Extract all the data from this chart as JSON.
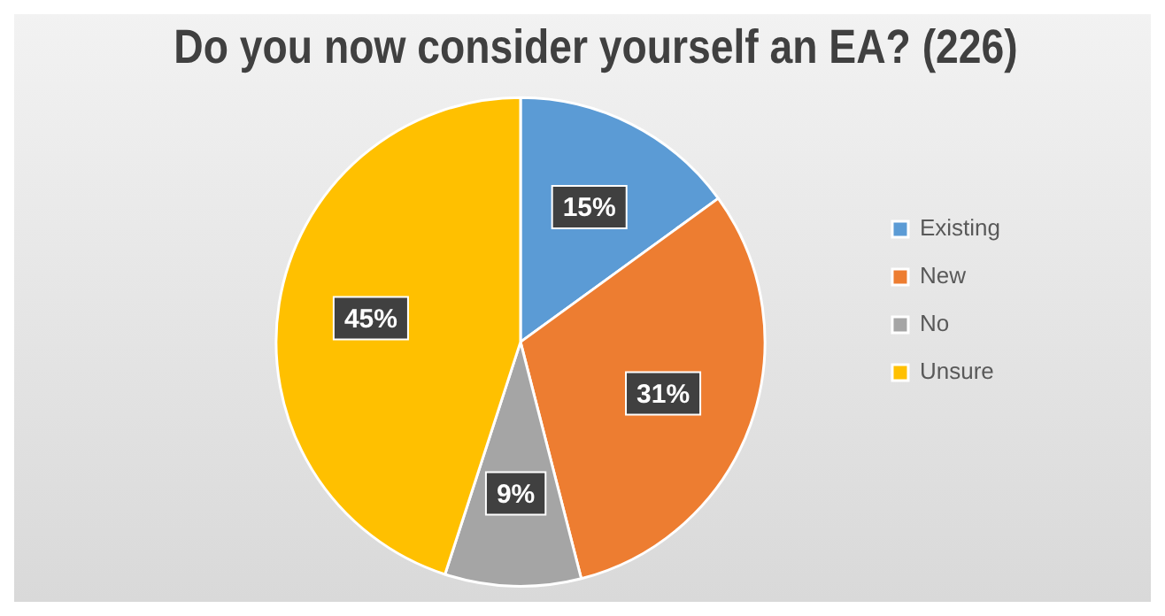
{
  "chart_data": {
    "type": "pie",
    "title": "Do you now consider yourself an EA? (226)",
    "categories": [
      "Existing",
      "New",
      "No",
      "Unsure"
    ],
    "values": [
      15,
      31,
      9,
      45
    ],
    "colors": [
      "#5b9bd5",
      "#ed7d31",
      "#a5a5a5",
      "#ffc000"
    ],
    "value_labels": [
      "15%",
      "31%",
      "9%",
      "45%"
    ],
    "legend": "right"
  }
}
